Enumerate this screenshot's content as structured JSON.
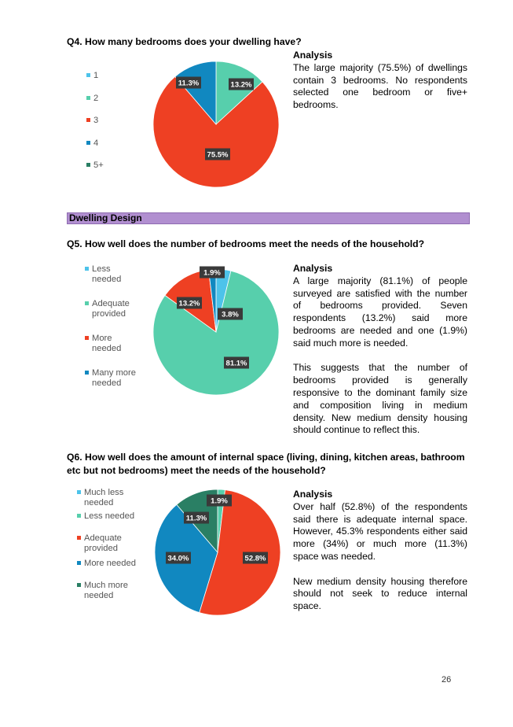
{
  "colors": {
    "light_blue": "#4dc3ea",
    "mint": "#57cfac",
    "red_orange": "#ee4023",
    "blue": "#1188c0",
    "dark_green": "#2a7f64",
    "section_bg": "#b18fd0",
    "label_bg": "#3a3a3a"
  },
  "q4": {
    "title": "Q4. How many bedrooms does your dwelling have?",
    "analysis_heading": "Analysis",
    "analysis_paragraphs": [
      "The large majority (75.5%) of dwellings contain 3 bedrooms. No respondents selected one bedroom or five+ bedrooms."
    ],
    "legend": [
      "1",
      "2",
      "3",
      "4",
      "5+"
    ]
  },
  "section": {
    "title": "Dwelling Design"
  },
  "q5": {
    "title": "Q5. How well does the number of bedrooms meet the needs of the household?",
    "analysis_heading": "Analysis",
    "analysis_paragraphs": [
      "A large majority (81.1%) of people surveyed are satisfied with the number of bedrooms provided. Seven respondents (13.2%) said more bedrooms are needed and one (1.9%) said much more is needed.",
      "This suggests that the number of bedrooms provided is generally responsive to the dominant family size and composition living in medium density. New medium density housing should continue to reflect this."
    ],
    "legend": [
      "Less\nneeded",
      "Adequate\nprovided",
      "More\nneeded",
      "Many more\nneeded"
    ]
  },
  "q6": {
    "title": "Q6. How well does the amount of internal space (living, dining, kitchen areas, bathroom etc but not bedrooms) meet the needs of the household?",
    "analysis_heading": "Analysis",
    "analysis_paragraphs": [
      "Over half (52.8%) of the respondents said there is adequate internal space. However, 45.3% respondents either said more (34%) or much more (11.3%) space was needed.",
      "New medium density housing therefore should not seek to reduce internal space."
    ],
    "legend": [
      "Much less\nneeded",
      "Less needed",
      "Adequate\nprovided",
      "More needed",
      "Much more\nneeded"
    ]
  },
  "page_number": "26",
  "chart_data": [
    {
      "type": "pie",
      "title": "",
      "categories": [
        "1",
        "2",
        "3",
        "4",
        "5+"
      ],
      "values": [
        0,
        13.2,
        75.5,
        11.3,
        0
      ],
      "value_labels": [
        "",
        "13.2%",
        "75.5%",
        "11.3%",
        ""
      ],
      "colors": [
        "#4dc3ea",
        "#57cfac",
        "#ee4023",
        "#1188c0",
        "#2a7f64"
      ],
      "legend_position": "left"
    },
    {
      "type": "pie",
      "title": "",
      "categories": [
        "Less needed",
        "Adequate provided",
        "More needed",
        "Many more needed"
      ],
      "values": [
        3.8,
        81.1,
        13.2,
        1.9
      ],
      "value_labels": [
        "3.8%",
        "81.1%",
        "13.2%",
        "1.9%"
      ],
      "colors": [
        "#4dc3ea",
        "#57cfac",
        "#ee4023",
        "#1188c0"
      ],
      "legend_position": "left"
    },
    {
      "type": "pie",
      "title": "",
      "categories": [
        "Much less needed",
        "Less needed",
        "Adequate provided",
        "More needed",
        "Much more needed"
      ],
      "values": [
        0,
        1.9,
        52.8,
        34.0,
        11.3
      ],
      "value_labels": [
        "",
        "1.9%",
        "52.8%",
        "34.0%",
        "11.3%"
      ],
      "colors": [
        "#4dc3ea",
        "#57cfac",
        "#ee4023",
        "#1188c0",
        "#2a7f64"
      ],
      "legend_position": "left"
    }
  ]
}
